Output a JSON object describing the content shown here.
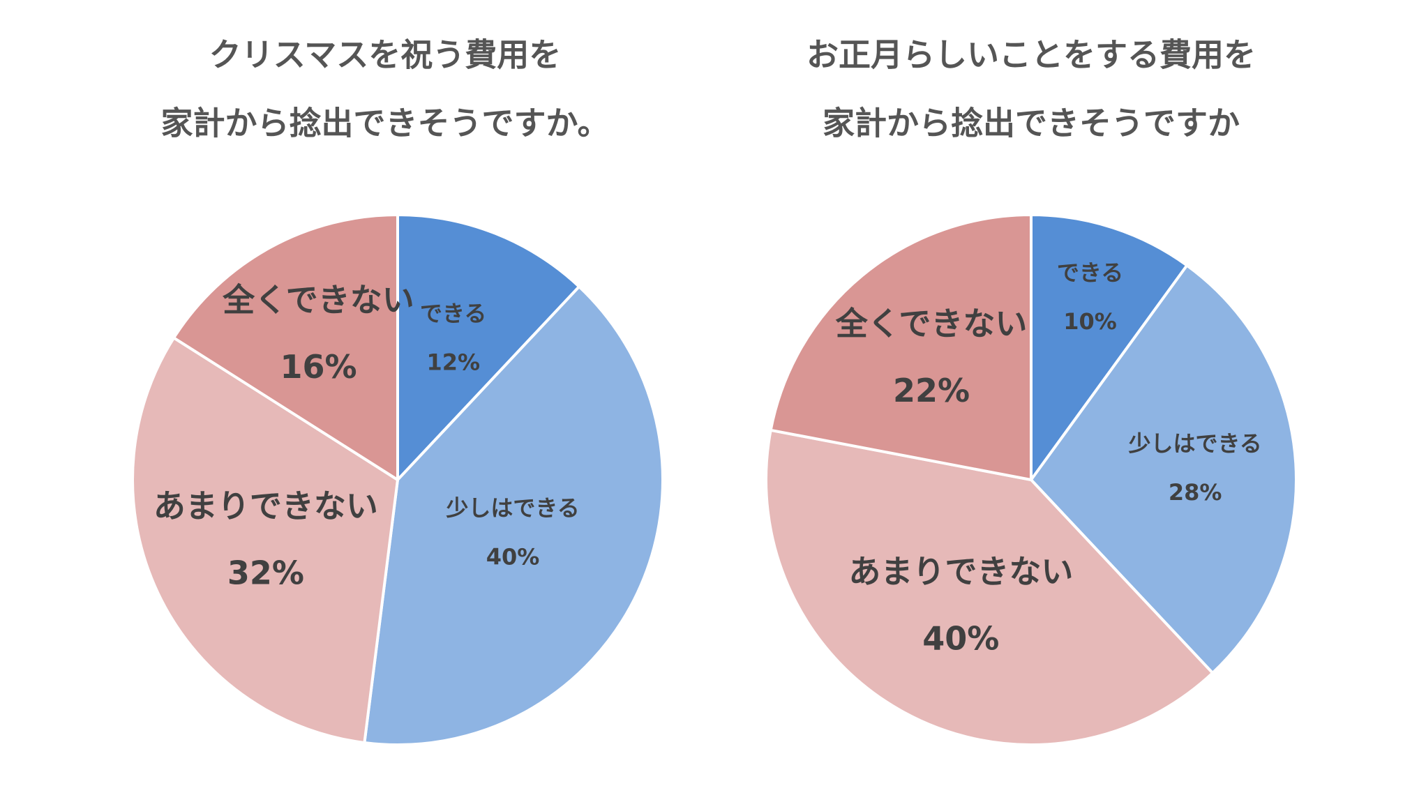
{
  "colors": {
    "dekiru": "#558ED5",
    "sukoshi": "#8EB4E3",
    "amari": "#E6B9B8",
    "mattaku": "#D99694",
    "border": "#ffffff",
    "title": "#555555",
    "label": "#404040"
  },
  "chart_data": [
    {
      "type": "pie",
      "title_lines": [
        "クリスマスを祝う費用を",
        "家計から捻出できそうですか。"
      ],
      "start_angle_deg": 0,
      "direction": "clockwise",
      "slices": [
        {
          "label": "できる",
          "value": 12,
          "value_label": "12%",
          "color_key": "dekiru",
          "label_size": "small"
        },
        {
          "label": "少しはできる",
          "value": 40,
          "value_label": "40%",
          "color_key": "sukoshi",
          "label_size": "small"
        },
        {
          "label": "あまりできない",
          "value": 32,
          "value_label": "32%",
          "color_key": "amari",
          "label_size": "large"
        },
        {
          "label": "全くできない",
          "value": 16,
          "value_label": "16%",
          "color_key": "mattaku",
          "label_size": "large"
        }
      ]
    },
    {
      "type": "pie",
      "title_lines": [
        "お正月らしいことをする費用を",
        "家計から捻出できそうですか"
      ],
      "start_angle_deg": 0,
      "direction": "clockwise",
      "slices": [
        {
          "label": "できる",
          "value": 10,
          "value_label": "10%",
          "color_key": "dekiru",
          "label_size": "small"
        },
        {
          "label": "少しはできる",
          "value": 28,
          "value_label": "28%",
          "color_key": "sukoshi",
          "label_size": "small"
        },
        {
          "label": "あまりできない",
          "value": 40,
          "value_label": "40%",
          "color_key": "amari",
          "label_size": "large"
        },
        {
          "label": "全くできない",
          "value": 22,
          "value_label": "22%",
          "color_key": "mattaku",
          "label_size": "large"
        }
      ]
    }
  ]
}
